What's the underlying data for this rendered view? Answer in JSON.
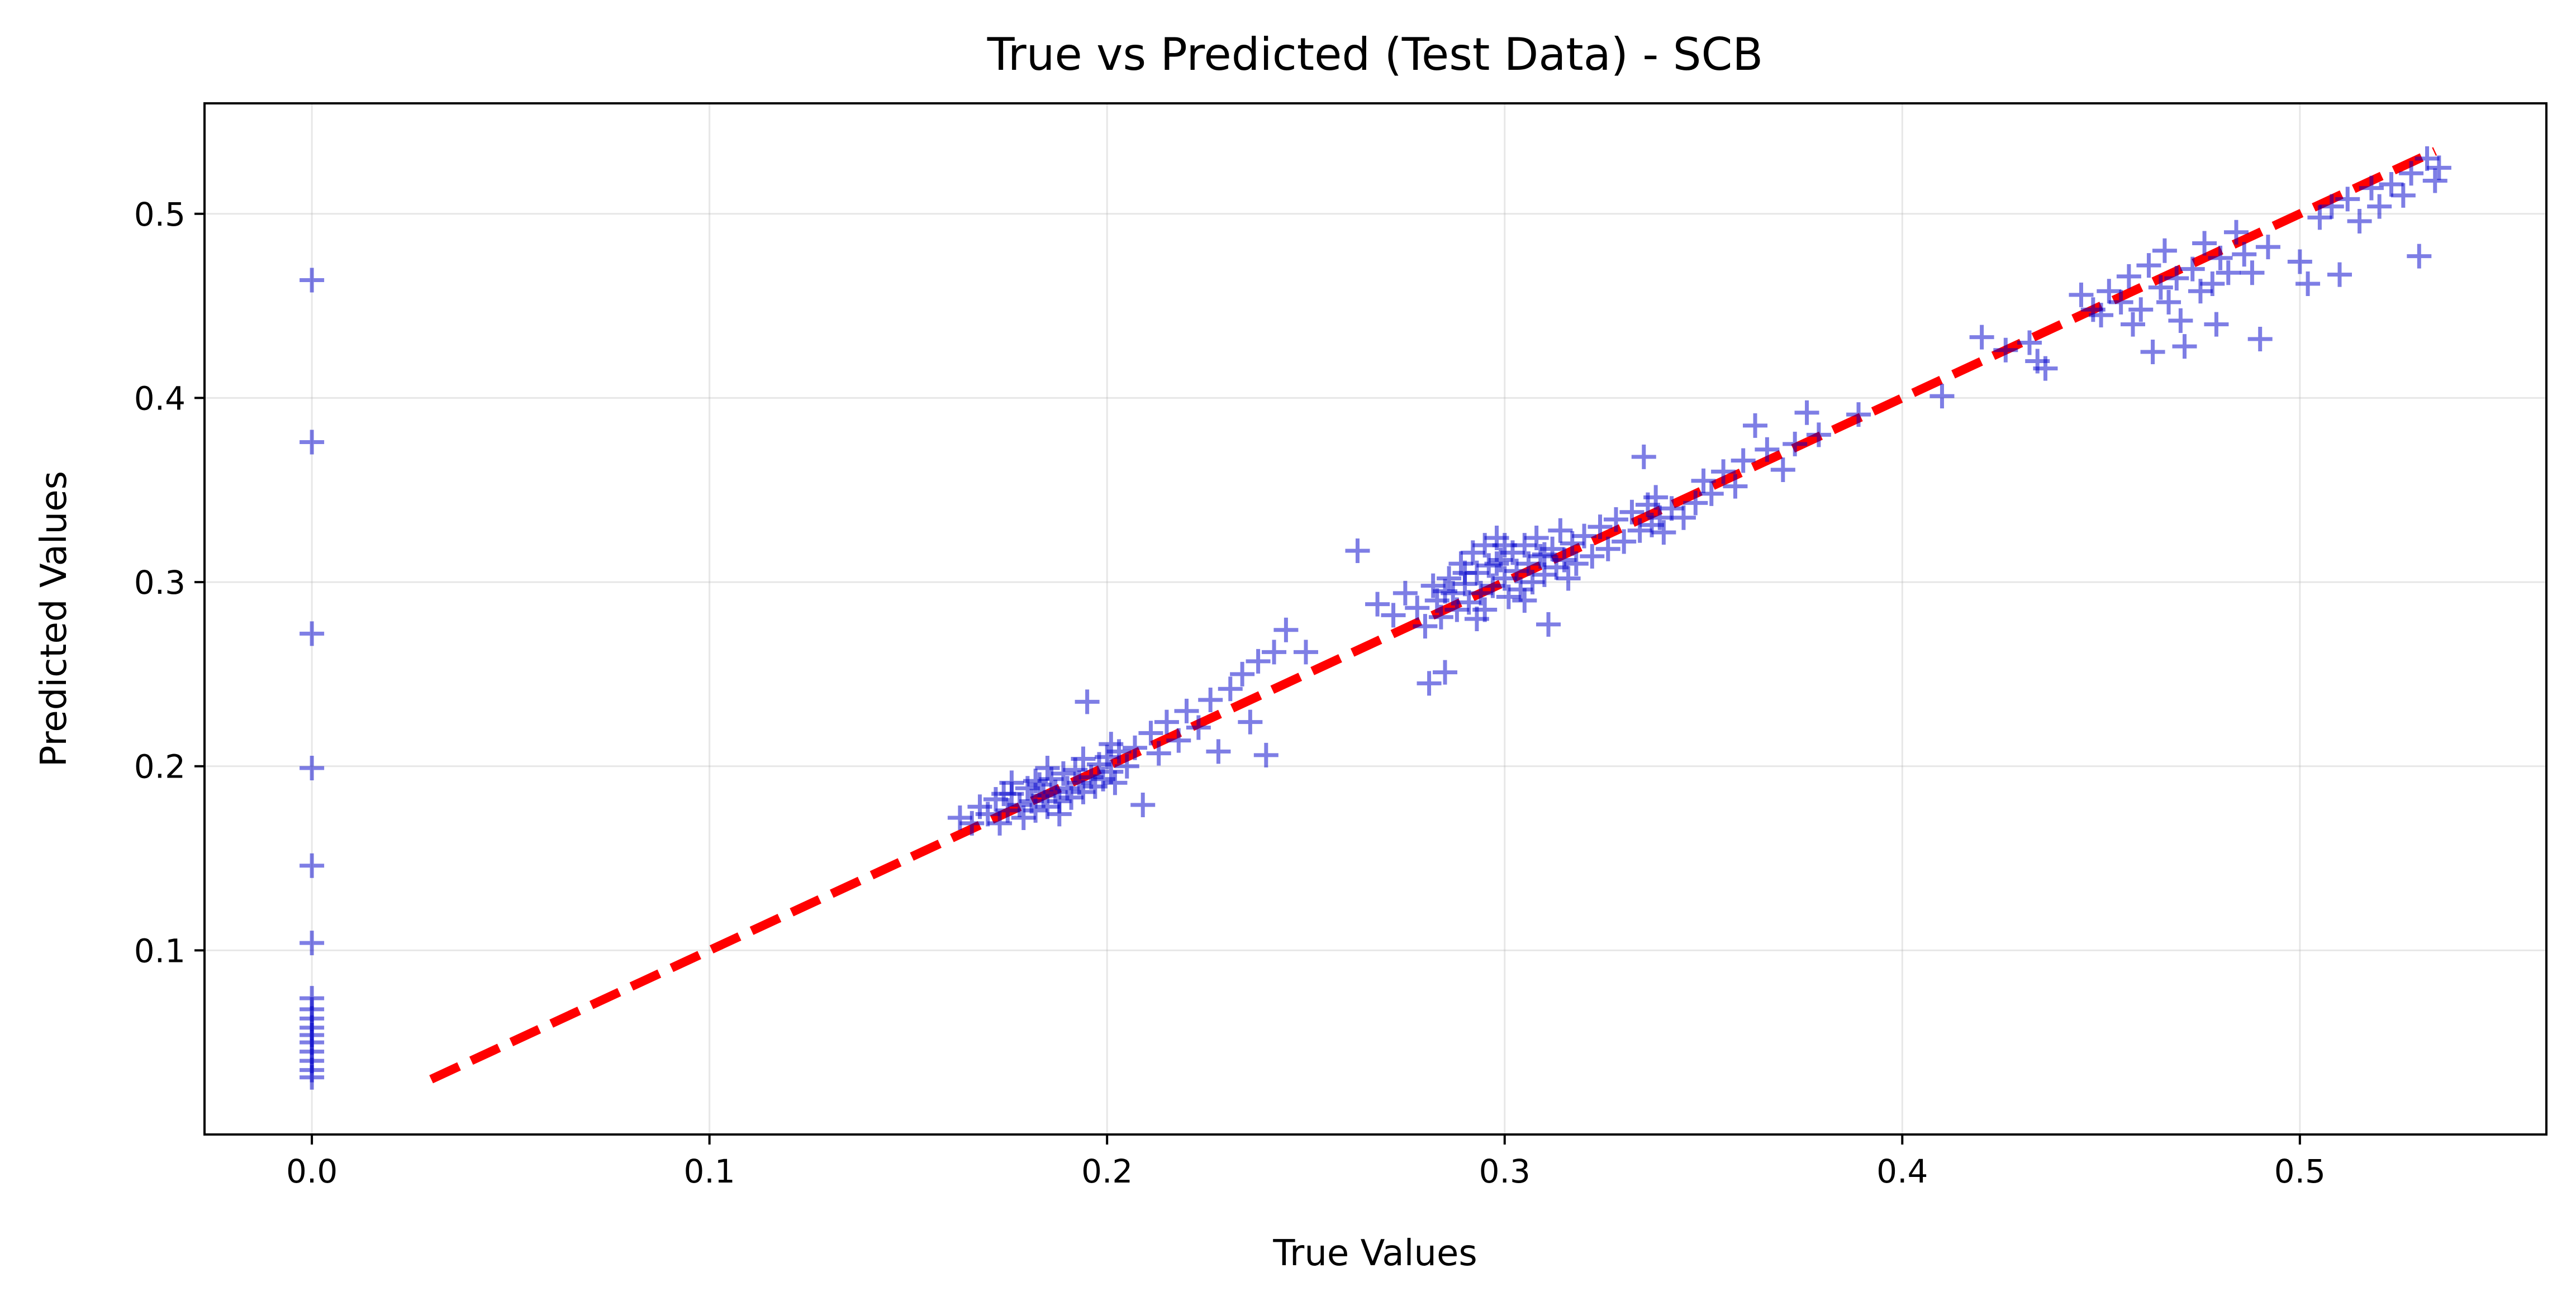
{
  "chart_data": {
    "type": "scatter",
    "title": "True vs Predicted (Test Data) - SCB",
    "xlabel": "True Values",
    "ylabel": "Predicted Values",
    "xlim": [
      -0.027,
      0.562
    ],
    "ylim": [
      0.0,
      0.56
    ],
    "x_ticks": [
      "0.0",
      "0.1",
      "0.2",
      "0.3",
      "0.4",
      "0.5"
    ],
    "x_tick_values": [
      0.0,
      0.1,
      0.2,
      0.3,
      0.4,
      0.5
    ],
    "y_ticks": [
      "0.1",
      "0.2",
      "0.3",
      "0.4",
      "0.5"
    ],
    "y_tick_values": [
      0.1,
      0.2,
      0.3,
      0.4,
      0.5
    ],
    "grid": true,
    "colors": {
      "points": "#0000cc",
      "reference_line": "#ff0000"
    },
    "reference_line": {
      "x": [
        0.03,
        0.534
      ],
      "y": [
        0.03,
        0.534
      ],
      "style": "dashed"
    },
    "series": [
      {
        "marker": "plus",
        "points": [
          [
            0.0,
            0.464
          ],
          [
            0.0,
            0.376
          ],
          [
            0.0,
            0.272
          ],
          [
            0.0,
            0.199
          ],
          [
            0.0,
            0.146
          ],
          [
            0.0,
            0.104
          ],
          [
            0.0,
            0.074
          ],
          [
            0.0,
            0.068
          ],
          [
            0.0,
            0.063
          ],
          [
            0.0,
            0.058
          ],
          [
            0.0,
            0.054
          ],
          [
            0.0,
            0.05
          ],
          [
            0.0,
            0.045
          ],
          [
            0.0,
            0.04
          ],
          [
            0.0,
            0.035
          ],
          [
            0.0,
            0.031
          ],
          [
            0.163,
            0.172
          ],
          [
            0.166,
            0.169
          ],
          [
            0.168,
            0.178
          ],
          [
            0.17,
            0.174
          ],
          [
            0.172,
            0.182
          ],
          [
            0.173,
            0.169
          ],
          [
            0.175,
            0.176
          ],
          [
            0.176,
            0.185
          ],
          [
            0.178,
            0.179
          ],
          [
            0.179,
            0.172
          ],
          [
            0.18,
            0.188
          ],
          [
            0.181,
            0.181
          ],
          [
            0.182,
            0.176
          ],
          [
            0.183,
            0.19
          ],
          [
            0.184,
            0.184
          ],
          [
            0.185,
            0.178
          ],
          [
            0.186,
            0.193
          ],
          [
            0.187,
            0.186
          ],
          [
            0.188,
            0.181
          ],
          [
            0.189,
            0.196
          ],
          [
            0.19,
            0.188
          ],
          [
            0.191,
            0.183
          ],
          [
            0.192,
            0.198
          ],
          [
            0.193,
            0.191
          ],
          [
            0.194,
            0.186
          ],
          [
            0.195,
            0.235
          ],
          [
            0.196,
            0.194
          ],
          [
            0.197,
            0.189
          ],
          [
            0.198,
            0.201
          ],
          [
            0.199,
            0.193
          ],
          [
            0.2,
            0.205
          ],
          [
            0.201,
            0.197
          ],
          [
            0.202,
            0.191
          ],
          [
            0.203,
            0.208
          ],
          [
            0.205,
            0.2
          ],
          [
            0.207,
            0.21
          ],
          [
            0.209,
            0.179
          ],
          [
            0.211,
            0.218
          ],
          [
            0.213,
            0.207
          ],
          [
            0.215,
            0.224
          ],
          [
            0.218,
            0.214
          ],
          [
            0.22,
            0.23
          ],
          [
            0.223,
            0.221
          ],
          [
            0.226,
            0.236
          ],
          [
            0.228,
            0.208
          ],
          [
            0.231,
            0.242
          ],
          [
            0.234,
            0.25
          ],
          [
            0.236,
            0.224
          ],
          [
            0.238,
            0.257
          ],
          [
            0.24,
            0.206
          ],
          [
            0.242,
            0.262
          ],
          [
            0.245,
            0.274
          ],
          [
            0.25,
            0.262
          ],
          [
            0.182,
            0.192
          ],
          [
            0.176,
            0.191
          ],
          [
            0.188,
            0.174
          ],
          [
            0.194,
            0.204
          ],
          [
            0.174,
            0.185
          ],
          [
            0.201,
            0.212
          ],
          [
            0.185,
            0.199
          ],
          [
            0.263,
            0.317
          ],
          [
            0.268,
            0.288
          ],
          [
            0.272,
            0.282
          ],
          [
            0.275,
            0.294
          ],
          [
            0.278,
            0.286
          ],
          [
            0.28,
            0.276
          ],
          [
            0.281,
            0.245
          ],
          [
            0.282,
            0.298
          ],
          [
            0.283,
            0.29
          ],
          [
            0.284,
            0.281
          ],
          [
            0.285,
            0.251
          ],
          [
            0.286,
            0.302
          ],
          [
            0.287,
            0.294
          ],
          [
            0.288,
            0.285
          ],
          [
            0.289,
            0.31
          ],
          [
            0.29,
            0.299
          ],
          [
            0.291,
            0.289
          ],
          [
            0.292,
            0.316
          ],
          [
            0.293,
            0.305
          ],
          [
            0.294,
            0.294
          ],
          [
            0.295,
            0.32
          ],
          [
            0.296,
            0.309
          ],
          [
            0.297,
            0.298
          ],
          [
            0.298,
            0.324
          ],
          [
            0.299,
            0.312
          ],
          [
            0.3,
            0.302
          ],
          [
            0.301,
            0.292
          ],
          [
            0.302,
            0.316
          ],
          [
            0.303,
            0.306
          ],
          [
            0.304,
            0.296
          ],
          [
            0.305,
            0.32
          ],
          [
            0.306,
            0.31
          ],
          [
            0.307,
            0.3
          ],
          [
            0.308,
            0.324
          ],
          [
            0.309,
            0.314
          ],
          [
            0.31,
            0.304
          ],
          [
            0.311,
            0.277
          ],
          [
            0.312,
            0.318
          ],
          [
            0.313,
            0.308
          ],
          [
            0.314,
            0.328
          ],
          [
            0.315,
            0.312
          ],
          [
            0.316,
            0.302
          ],
          [
            0.317,
            0.321
          ],
          [
            0.318,
            0.31
          ],
          [
            0.32,
            0.325
          ],
          [
            0.322,
            0.314
          ],
          [
            0.324,
            0.33
          ],
          [
            0.326,
            0.318
          ],
          [
            0.328,
            0.334
          ],
          [
            0.33,
            0.322
          ],
          [
            0.332,
            0.338
          ],
          [
            0.334,
            0.328
          ],
          [
            0.335,
            0.368
          ],
          [
            0.336,
            0.342
          ],
          [
            0.337,
            0.331
          ],
          [
            0.338,
            0.346
          ],
          [
            0.339,
            0.335
          ],
          [
            0.34,
            0.327
          ],
          [
            0.342,
            0.34
          ],
          [
            0.345,
            0.335
          ],
          [
            0.348,
            0.343
          ],
          [
            0.35,
            0.355
          ],
          [
            0.352,
            0.348
          ],
          [
            0.355,
            0.36
          ],
          [
            0.358,
            0.352
          ],
          [
            0.36,
            0.366
          ],
          [
            0.363,
            0.385
          ],
          [
            0.366,
            0.372
          ],
          [
            0.37,
            0.361
          ],
          [
            0.373,
            0.375
          ],
          [
            0.376,
            0.392
          ],
          [
            0.379,
            0.38
          ],
          [
            0.389,
            0.391
          ],
          [
            0.295,
            0.285
          ],
          [
            0.29,
            0.305
          ],
          [
            0.3,
            0.32
          ],
          [
            0.285,
            0.295
          ],
          [
            0.305,
            0.29
          ],
          [
            0.31,
            0.315
          ],
          [
            0.298,
            0.31
          ],
          [
            0.293,
            0.28
          ],
          [
            0.41,
            0.401
          ],
          [
            0.42,
            0.433
          ],
          [
            0.426,
            0.426
          ],
          [
            0.432,
            0.43
          ],
          [
            0.434,
            0.42
          ],
          [
            0.436,
            0.416
          ],
          [
            0.445,
            0.456
          ],
          [
            0.448,
            0.448
          ],
          [
            0.45,
            0.445
          ],
          [
            0.452,
            0.458
          ],
          [
            0.455,
            0.452
          ],
          [
            0.457,
            0.466
          ],
          [
            0.458,
            0.44
          ],
          [
            0.46,
            0.448
          ],
          [
            0.462,
            0.472
          ],
          [
            0.463,
            0.425
          ],
          [
            0.465,
            0.46
          ],
          [
            0.466,
            0.48
          ],
          [
            0.467,
            0.452
          ],
          [
            0.469,
            0.465
          ],
          [
            0.47,
            0.442
          ],
          [
            0.471,
            0.428
          ],
          [
            0.473,
            0.47
          ],
          [
            0.475,
            0.458
          ],
          [
            0.476,
            0.484
          ],
          [
            0.478,
            0.462
          ],
          [
            0.479,
            0.44
          ],
          [
            0.48,
            0.476
          ],
          [
            0.482,
            0.468
          ],
          [
            0.484,
            0.49
          ],
          [
            0.486,
            0.478
          ],
          [
            0.488,
            0.468
          ],
          [
            0.49,
            0.432
          ],
          [
            0.492,
            0.482
          ],
          [
            0.5,
            0.474
          ],
          [
            0.502,
            0.462
          ],
          [
            0.505,
            0.498
          ],
          [
            0.508,
            0.504
          ],
          [
            0.51,
            0.467
          ],
          [
            0.512,
            0.508
          ],
          [
            0.515,
            0.496
          ],
          [
            0.518,
            0.514
          ],
          [
            0.52,
            0.504
          ],
          [
            0.523,
            0.516
          ],
          [
            0.526,
            0.51
          ],
          [
            0.528,
            0.522
          ],
          [
            0.53,
            0.477
          ],
          [
            0.532,
            0.53
          ],
          [
            0.534,
            0.518
          ],
          [
            0.535,
            0.525
          ]
        ]
      }
    ]
  }
}
